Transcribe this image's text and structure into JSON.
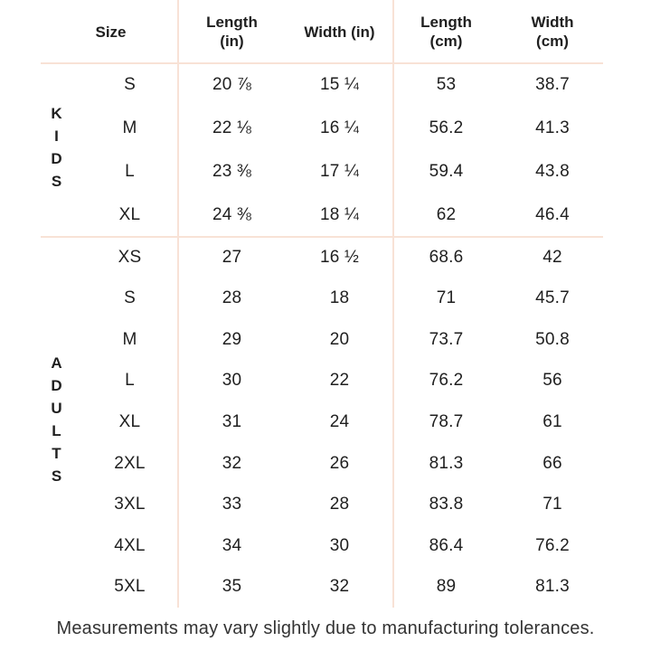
{
  "theme": {
    "divider_line_color": "#f8e2d6",
    "text_color": "#1f1f1f",
    "footer_text_color": "#333333",
    "background_color": "#ffffff"
  },
  "header": {
    "size": "Size",
    "length_in_line1": "Length",
    "length_in_line2": "(in)",
    "width_in": "Width (in)",
    "length_cm_line1": "Length",
    "length_cm_line2": "(cm)",
    "width_cm_line1": "Width",
    "width_cm_line2": "(cm)"
  },
  "sections": [
    {
      "id": "kids",
      "group_label": "KIDS",
      "rows": [
        {
          "size": "S",
          "length_in": "20 ⅞",
          "width_in": "15 ¼",
          "length_cm": "53",
          "width_cm": "38.7"
        },
        {
          "size": "M",
          "length_in": "22 ⅛",
          "width_in": "16 ¼",
          "length_cm": "56.2",
          "width_cm": "41.3"
        },
        {
          "size": "L",
          "length_in": "23 ⅜",
          "width_in": "17 ¼",
          "length_cm": "59.4",
          "width_cm": "43.8"
        },
        {
          "size": "XL",
          "length_in": "24 ⅜",
          "width_in": "18 ¼",
          "length_cm": "62",
          "width_cm": "46.4"
        }
      ]
    },
    {
      "id": "adults",
      "group_label": "ADULTS",
      "rows": [
        {
          "size": "XS",
          "length_in": "27",
          "width_in": "16 ½",
          "length_cm": "68.6",
          "width_cm": "42"
        },
        {
          "size": "S",
          "length_in": "28",
          "width_in": "18",
          "length_cm": "71",
          "width_cm": "45.7"
        },
        {
          "size": "M",
          "length_in": "29",
          "width_in": "20",
          "length_cm": "73.7",
          "width_cm": "50.8"
        },
        {
          "size": "L",
          "length_in": "30",
          "width_in": "22",
          "length_cm": "76.2",
          "width_cm": "56"
        },
        {
          "size": "XL",
          "length_in": "31",
          "width_in": "24",
          "length_cm": "78.7",
          "width_cm": "61"
        },
        {
          "size": "2XL",
          "length_in": "32",
          "width_in": "26",
          "length_cm": "81.3",
          "width_cm": "66"
        },
        {
          "size": "3XL",
          "length_in": "33",
          "width_in": "28",
          "length_cm": "83.8",
          "width_cm": "71"
        },
        {
          "size": "4XL",
          "length_in": "34",
          "width_in": "30",
          "length_cm": "86.4",
          "width_cm": "76.2"
        },
        {
          "size": "5XL",
          "length_in": "35",
          "width_in": "32",
          "length_cm": "89",
          "width_cm": "81.3"
        }
      ]
    }
  ],
  "footer": {
    "note": "Measurements may vary slightly due to manufacturing tolerances."
  }
}
